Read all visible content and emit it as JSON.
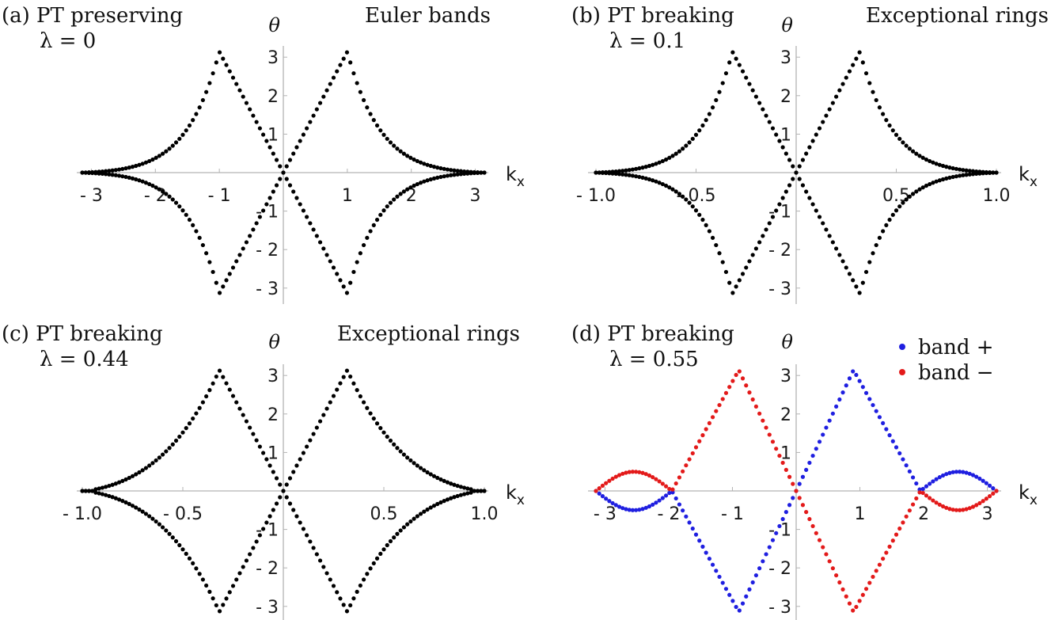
{
  "chart_data": [
    {
      "panel": "a",
      "type": "scatter",
      "title_left": "(a) PT preserving",
      "param_label": "λ = 0",
      "title_right": "Euler bands",
      "xlabel": "k",
      "xlabel_sub": "x",
      "ylabel": "θ",
      "xlim": [
        -3.1416,
        3.1416
      ],
      "ylim": [
        -3.1416,
        3.1416
      ],
      "xticks": [
        {
          "v": -3,
          "label": "- 3"
        },
        {
          "v": -2,
          "label": "- 2"
        },
        {
          "v": -1,
          "label": "- 1"
        },
        {
          "v": 1,
          "label": "1"
        },
        {
          "v": 2,
          "label": "2"
        },
        {
          "v": 3,
          "label": "3"
        }
      ],
      "yticks": [
        {
          "v": 3,
          "label": "3"
        },
        {
          "v": 2,
          "label": "2"
        },
        {
          "v": 1,
          "label": "1"
        },
        {
          "v": -1,
          "label": "- 1"
        },
        {
          "v": -2,
          "label": "- 2"
        },
        {
          "v": -3,
          "label": "- 3"
        }
      ],
      "lambda": 0,
      "color_mode": "mono"
    },
    {
      "panel": "b",
      "type": "scatter",
      "title_left": "(b) PT breaking",
      "param_label": "λ = 0.1",
      "title_right": "Exceptional rings",
      "xlabel": "k",
      "xlabel_sub": "x",
      "ylabel": "θ",
      "xlim": [
        -1.0,
        1.0
      ],
      "ylim": [
        -3.1416,
        3.1416
      ],
      "xticks": [
        {
          "v": -1.0,
          "label": "- 1.0"
        },
        {
          "v": -0.5,
          "label": "- 0.5"
        },
        {
          "v": 0.5,
          "label": "0.5"
        },
        {
          "v": 1.0,
          "label": "1.0"
        }
      ],
      "yticks": [
        {
          "v": 3,
          "label": "3"
        },
        {
          "v": 2,
          "label": "2"
        },
        {
          "v": 1,
          "label": "1"
        },
        {
          "v": -1,
          "label": "- 1"
        },
        {
          "v": -2,
          "label": "- 2"
        },
        {
          "v": -3,
          "label": "- 3"
        }
      ],
      "lambda": 0.1,
      "color_mode": "mono"
    },
    {
      "panel": "c",
      "type": "scatter",
      "title_left": "(c) PT breaking",
      "param_label": "λ = 0.44",
      "title_right": "Exceptional rings",
      "xlabel": "k",
      "xlabel_sub": "x",
      "ylabel": "θ",
      "xlim": [
        -1.0,
        1.0
      ],
      "ylim": [
        -3.1416,
        3.1416
      ],
      "xticks": [
        {
          "v": -1.0,
          "label": "- 1.0"
        },
        {
          "v": -0.5,
          "label": "- 0.5"
        },
        {
          "v": 0.5,
          "label": "0.5"
        },
        {
          "v": 1.0,
          "label": "1.0"
        }
      ],
      "yticks": [
        {
          "v": 3,
          "label": "3"
        },
        {
          "v": 2,
          "label": "2"
        },
        {
          "v": 1,
          "label": "1"
        },
        {
          "v": -1,
          "label": "- 1"
        },
        {
          "v": -2,
          "label": "- 2"
        },
        {
          "v": -3,
          "label": "- 3"
        }
      ],
      "lambda": 0.44,
      "color_mode": "mono"
    },
    {
      "panel": "d",
      "type": "scatter",
      "title_left": "(d) PT breaking",
      "param_label": "λ = 0.55",
      "title_right": "",
      "xlabel": "k",
      "xlabel_sub": "x",
      "ylabel": "θ",
      "xlim": [
        -3.1416,
        3.1416
      ],
      "ylim": [
        -3.1416,
        3.1416
      ],
      "xticks": [
        {
          "v": -3,
          "label": "- 3"
        },
        {
          "v": -2,
          "label": "- 2"
        },
        {
          "v": -1,
          "label": "- 1"
        },
        {
          "v": 1,
          "label": "1"
        },
        {
          "v": 2,
          "label": "2"
        },
        {
          "v": 3,
          "label": "3"
        }
      ],
      "yticks": [
        {
          "v": 3,
          "label": "3"
        },
        {
          "v": 2,
          "label": "2"
        },
        {
          "v": 1,
          "label": "1"
        },
        {
          "v": -1,
          "label": "- 1"
        },
        {
          "v": -2,
          "label": "- 2"
        },
        {
          "v": -3,
          "label": "- 3"
        }
      ],
      "lambda": 0.55,
      "color_mode": "bands",
      "legend": [
        {
          "name": "band +",
          "color": "#1f1fe0"
        },
        {
          "name": "band −",
          "color": "#e31a1a"
        }
      ],
      "legend_position": "top-right"
    }
  ],
  "colors": {
    "mono_points": "#000000",
    "axis": "#b3b3b3"
  }
}
